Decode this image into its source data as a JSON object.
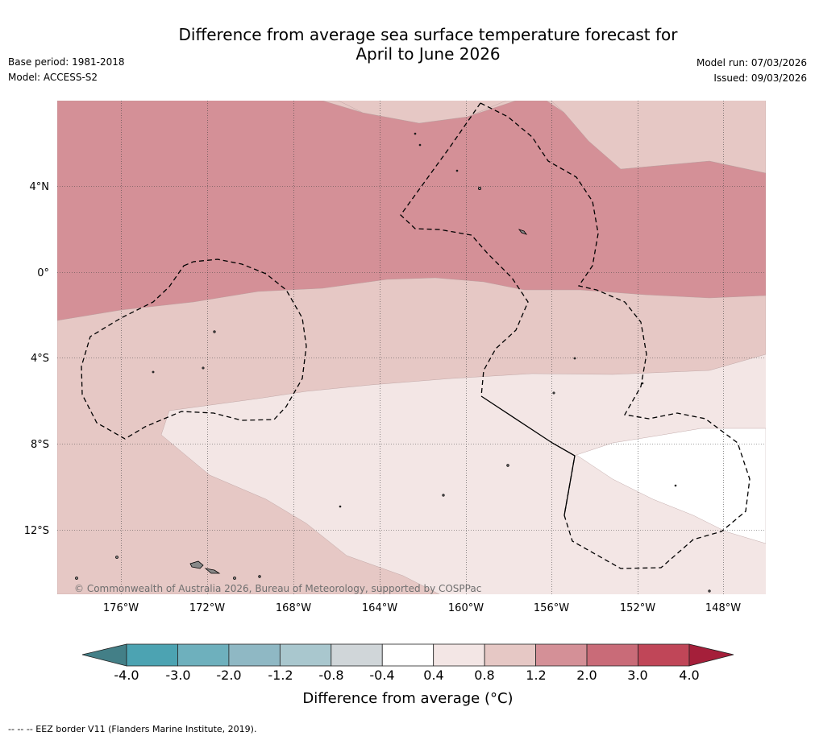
{
  "header": {
    "title_line1": "Difference from average sea surface temperature forecast for",
    "title_line2": "April to June 2026",
    "base_period": "Base period: 1981-2018",
    "model": "Model: ACCESS-S2",
    "model_run": "Model run: 07/03/2026",
    "issued": "Issued: 09/03/2026"
  },
  "map": {
    "lat_labels": [
      "4°N",
      "0°",
      "4°S",
      "8°S",
      "12°S"
    ],
    "lon_labels": [
      "176°W",
      "172°W",
      "168°W",
      "164°W",
      "160°W",
      "156°W",
      "152°W",
      "148°W"
    ],
    "copyright": "© Commonwealth of Australia 2026, Bureau of Meteorology, supported by COSPPac",
    "bands": [
      {
        "category": "0.4 to 0.8",
        "color": "#f3e6e5"
      },
      {
        "category": "0.8 to 1.2",
        "color": "#e6c8c5"
      },
      {
        "category": "1.2 to 2.0",
        "color": "#d49097"
      },
      {
        "category": "-0.4 to 0.4",
        "color": "#ffffff"
      }
    ]
  },
  "colorbar": {
    "ticks": [
      "-4.0",
      "-3.0",
      "-2.0",
      "-1.2",
      "-0.8",
      "-0.4",
      "0.4",
      "0.8",
      "1.2",
      "2.0",
      "3.0",
      "4.0"
    ],
    "colors": [
      "#437f87",
      "#4ca3b2",
      "#6eb0bd",
      "#8fb8c4",
      "#a9c7ce",
      "#d0d6d9",
      "#ffffff",
      "#f3e6e5",
      "#e6c8c5",
      "#d49097",
      "#c96b78",
      "#c04658",
      "#a51f3a"
    ],
    "title": "Difference from average (°C)"
  },
  "footer": "--  --  -- EEZ border V11 (Flanders Marine Institute, 2019)."
}
